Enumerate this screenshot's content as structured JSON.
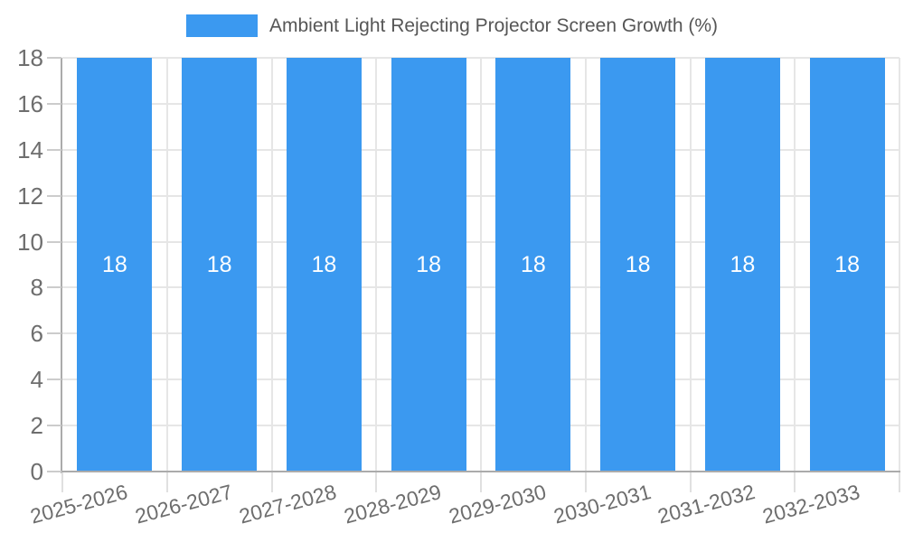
{
  "chart_data": {
    "type": "bar",
    "title": "Ambient Light Rejecting Projector Screen Growth (%)",
    "categories": [
      "2025-2026",
      "2026-2027",
      "2027-2028",
      "2028-2029",
      "2029-2030",
      "2030-2031",
      "2031-2032",
      "2032-2033"
    ],
    "values": [
      18,
      18,
      18,
      18,
      18,
      18,
      18,
      18
    ],
    "bar_value_labels": [
      "18",
      "18",
      "18",
      "18",
      "18",
      "18",
      "18",
      "18"
    ],
    "yticks": [
      0,
      2,
      4,
      6,
      8,
      10,
      12,
      14,
      16,
      18
    ],
    "ytick_labels": [
      "0",
      "2",
      "4",
      "6",
      "8",
      "10",
      "12",
      "14",
      "16",
      "18"
    ],
    "ylim": [
      0,
      18
    ],
    "xlabel": "",
    "ylabel": "",
    "grid": "on",
    "legend_position": "top-center",
    "colors": {
      "bar": "#3B99F0",
      "bar_label_text": "#FFFFFF",
      "axis_label_text": "#6E6E6E",
      "legend_text": "#565656",
      "gridline": "#E6E6E6",
      "axis_line": "#ABABAB",
      "tick": "#CCCCCC",
      "background": "#FFFFFF"
    }
  }
}
